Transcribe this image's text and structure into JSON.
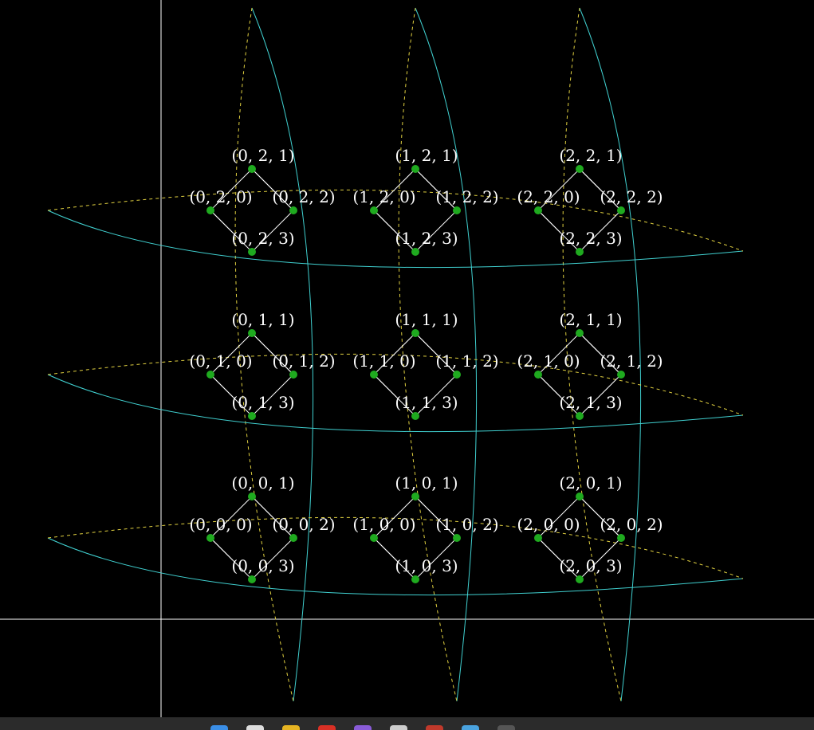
{
  "diagram": {
    "background": "#000000",
    "axis_color": "#ffffff",
    "node_color": "#1faa1f",
    "edge_color": "#ffffff",
    "curve_solid_color": "#40d0d0",
    "curve_dashed_color": "#e0d040",
    "label_color": "#ffffff",
    "node_labels": [
      [
        "(0, 0, 0)",
        "(0, 0, 1)",
        "(0, 0, 2)",
        "(0, 0, 3)"
      ],
      [
        "(1, 0, 0)",
        "(1, 0, 1)",
        "(1, 0, 2)",
        "(1, 0, 3)"
      ],
      [
        "(2, 0, 0)",
        "(2, 0, 1)",
        "(2, 0, 2)",
        "(2, 0, 3)"
      ],
      [
        "(0, 1, 0)",
        "(0, 1, 1)",
        "(0, 1, 2)",
        "(0, 1, 3)"
      ],
      [
        "(1, 1, 0)",
        "(1, 1, 1)",
        "(1, 1, 2)",
        "(1, 1, 3)"
      ],
      [
        "(2, 1, 0)",
        "(2, 1, 1)",
        "(2, 1, 2)",
        "(2, 1, 3)"
      ],
      [
        "(0, 2, 0)",
        "(0, 2, 1)",
        "(0, 2, 2)",
        "(0, 2, 3)"
      ],
      [
        "(1, 2, 0)",
        "(1, 2, 1)",
        "(1, 2, 2)",
        "(1, 2, 3)"
      ],
      [
        "(2, 2, 0)",
        "(2, 2, 1)",
        "(2, 2, 2)",
        "(2, 2, 3)"
      ]
    ]
  },
  "taskbar": {
    "background": "#2b2b2b",
    "icons": [
      "windows-start-icon",
      "search-icon",
      "file-explorer-icon",
      "browser-icon",
      "app-icon",
      "folder-icon",
      "game-icon",
      "calendar-icon",
      "window-icon"
    ]
  }
}
